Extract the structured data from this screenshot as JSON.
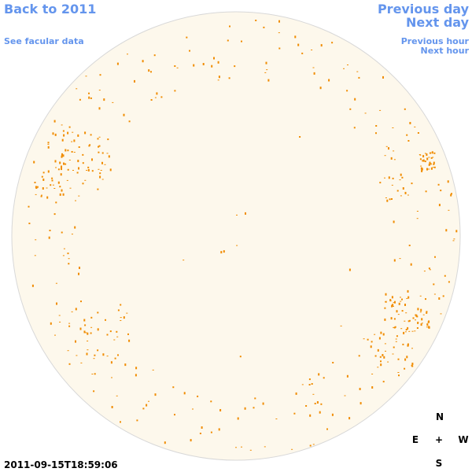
{
  "links": {
    "back": "Back to 2011",
    "facular": "See facular data",
    "previous_day": "Previous day",
    "next_day": "Next day",
    "previous_hour": "Previous hour",
    "next_hour": "Next hour"
  },
  "timestamp": "2011-09-15T18:59:06",
  "compass": {
    "north": "N",
    "east": "E",
    "center": "+",
    "west": "W",
    "south": "S"
  }
}
